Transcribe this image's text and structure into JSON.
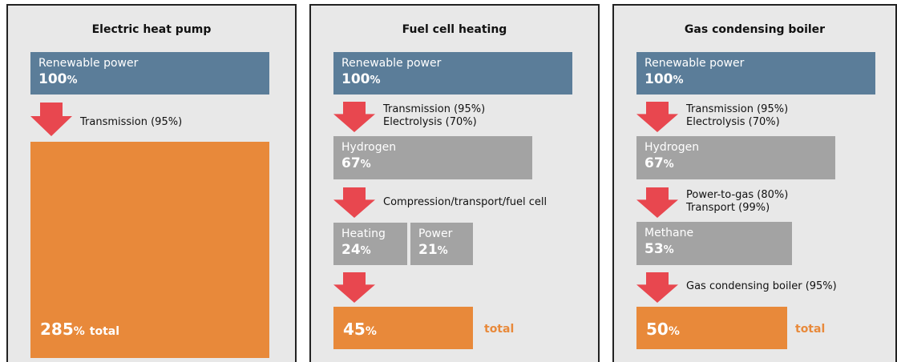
{
  "panels": [
    {
      "title": "Electric heat pump",
      "source": {
        "label": "Renewable power",
        "value": "100",
        "unit": "%"
      },
      "steps": [
        [
          "Transmission (95%)"
        ]
      ],
      "result": {
        "value": "285",
        "unit": "%",
        "note": "total"
      }
    },
    {
      "title": "Fuel cell heating",
      "source": {
        "label": "Renewable power",
        "value": "100",
        "unit": "%"
      },
      "steps": [
        [
          "Transmission (95%)",
          "Electrolysis (70%)"
        ],
        [
          "Compression/transport/fuel cell"
        ]
      ],
      "boxes": [
        {
          "label": "Hydrogen",
          "value": "67",
          "unit": "%"
        },
        {
          "label": "Heating",
          "value": "24",
          "unit": "%"
        },
        {
          "label": "Power",
          "value": "21",
          "unit": "%"
        }
      ],
      "result": {
        "value": "45",
        "unit": "%",
        "note": "total"
      }
    },
    {
      "title": "Gas condensing boiler",
      "source": {
        "label": "Renewable power",
        "value": "100",
        "unit": "%"
      },
      "steps": [
        [
          "Transmission (95%)",
          "Electrolysis (70%)"
        ],
        [
          "Power-to-gas (80%)",
          "Transport (99%)"
        ],
        [
          "Gas condensing boiler (95%)"
        ]
      ],
      "boxes": [
        {
          "label": "Hydrogen",
          "value": "67",
          "unit": "%"
        },
        {
          "label": "Methane",
          "value": "53",
          "unit": "%"
        }
      ],
      "result": {
        "value": "50",
        "unit": "%",
        "note": "total"
      }
    }
  ]
}
